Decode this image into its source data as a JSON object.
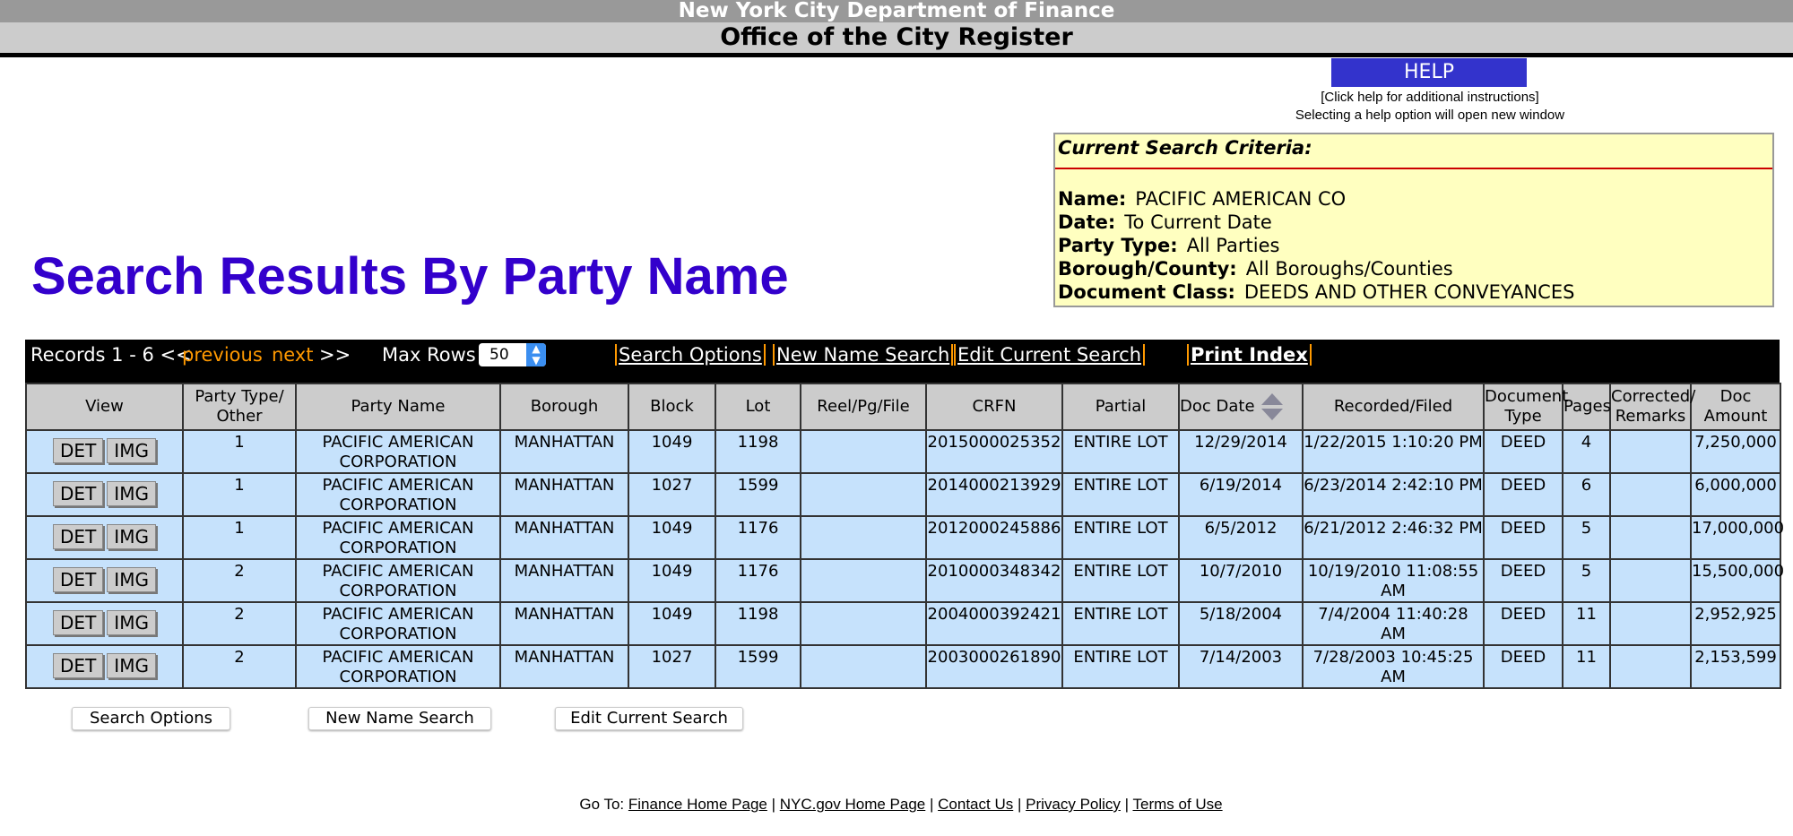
{
  "header": {
    "dept": "New York City Department of Finance",
    "office": "Office of the City Register"
  },
  "help": {
    "label": "HELP",
    "line1": "[Click help for additional instructions]",
    "line2": "Selecting a help option will open new window"
  },
  "criteria": {
    "title": "Current Search Criteria:",
    "items": [
      {
        "label": "Name:",
        "value": "PACIFIC AMERICAN CO"
      },
      {
        "label": "Date:",
        "value": "To Current Date"
      },
      {
        "label": "Party Type:",
        "value": "All Parties"
      },
      {
        "label": "Borough/County:",
        "value": "All Boroughs/Counties"
      },
      {
        "label": "Document Class:",
        "value": "DEEDS AND OTHER CONVEYANCES"
      }
    ]
  },
  "page_title": "Search Results By Party Name",
  "toolbar": {
    "records": "Records 1 - 6 <<",
    "previous": "previous",
    "next": "next",
    ">>": ">>",
    "max_rows_label": "Max Rows",
    "max_rows": "50",
    "search_options": "Search Options",
    "new_name_search": "New Name Search",
    "edit_current_search": "Edit Current Search",
    "print_index": "Print Index"
  },
  "columns": [
    "View",
    "Party Type/ Other",
    "Party Name",
    "Borough",
    "Block",
    "Lot",
    "Reel/Pg/File",
    "CRFN",
    "Partial",
    "Doc Date",
    "Recorded/Filed",
    "Document Type",
    "Pages",
    "Corrected/ Remarks",
    "Doc Amount"
  ],
  "buttons": {
    "det": "DET",
    "img": "IMG"
  },
  "rows": [
    [
      "1",
      "PACIFIC AMERICAN CORPORATION",
      "MANHATTAN",
      "1049",
      "1198",
      "",
      "2015000025352",
      "ENTIRE LOT",
      "12/29/2014",
      "1/22/2015 1:10:20 PM",
      "DEED",
      "4",
      "",
      "7,250,000"
    ],
    [
      "1",
      "PACIFIC AMERICAN CORPORATION",
      "MANHATTAN",
      "1027",
      "1599",
      "",
      "2014000213929",
      "ENTIRE LOT",
      "6/19/2014",
      "6/23/2014 2:42:10 PM",
      "DEED",
      "6",
      "",
      "6,000,000"
    ],
    [
      "1",
      "PACIFIC AMERICAN CORPORATION",
      "MANHATTAN",
      "1049",
      "1176",
      "",
      "2012000245886",
      "ENTIRE LOT",
      "6/5/2012",
      "6/21/2012 2:46:32 PM",
      "DEED",
      "5",
      "",
      "17,000,000"
    ],
    [
      "2",
      "PACIFIC AMERICAN CORPORATION",
      "MANHATTAN",
      "1049",
      "1176",
      "",
      "2010000348342",
      "ENTIRE LOT",
      "10/7/2010",
      "10/19/2010 11:08:55 AM",
      "DEED",
      "5",
      "",
      "15,500,000"
    ],
    [
      "2",
      "PACIFIC AMERICAN CORPORATION",
      "MANHATTAN",
      "1049",
      "1198",
      "",
      "2004000392421",
      "ENTIRE LOT",
      "5/18/2004",
      "7/4/2004 11:40:28 AM",
      "DEED",
      "11",
      "",
      "2,952,925"
    ],
    [
      "2",
      "PACIFIC AMERICAN CORPORATION",
      "MANHATTAN",
      "1027",
      "1599",
      "",
      "2003000261890",
      "ENTIRE LOT",
      "7/14/2003",
      "7/28/2003 10:45:25 AM",
      "DEED",
      "11",
      "",
      "2,153,599"
    ]
  ],
  "bottom_buttons": [
    "Search Options",
    "New Name Search",
    "Edit Current Search"
  ],
  "footer": {
    "goto": "Go To:",
    "links": [
      "Finance Home Page",
      "NYC.gov Home Page",
      "Contact Us",
      "Privacy Policy",
      "Terms of Use"
    ]
  },
  "colors": {
    "title": "#3300cc",
    "help": "#3333cc",
    "criteria_bg": "#ffffc0",
    "row_bg": "#c6e2fc",
    "link_accent": "#ff9900"
  }
}
